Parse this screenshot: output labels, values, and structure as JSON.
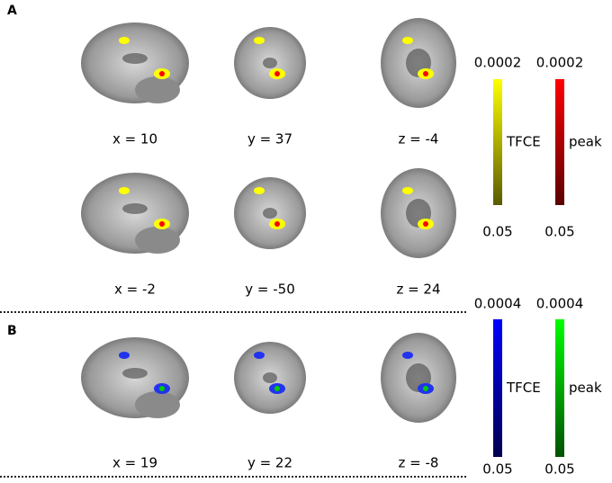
{
  "panels": [
    {
      "label": "A",
      "rows": [
        [
          "x = 10",
          "y = 37",
          "z = -4"
        ],
        [
          "x = -2",
          "y = -50",
          "z = 24"
        ]
      ],
      "colorbars": [
        {
          "name": "TFCE",
          "top": "0.0002",
          "bottom": "0.05"
        },
        {
          "name": "peak",
          "top": "0.0002",
          "bottom": "0.05"
        }
      ]
    },
    {
      "label": "B",
      "rows": [
        [
          "x = 19",
          "y = 22",
          "z = -8"
        ]
      ],
      "colorbars": [
        {
          "name": "TFCE",
          "top": "0.0004",
          "bottom": "0.05"
        },
        {
          "name": "peak",
          "top": "0.0004",
          "bottom": "0.05"
        }
      ]
    }
  ]
}
